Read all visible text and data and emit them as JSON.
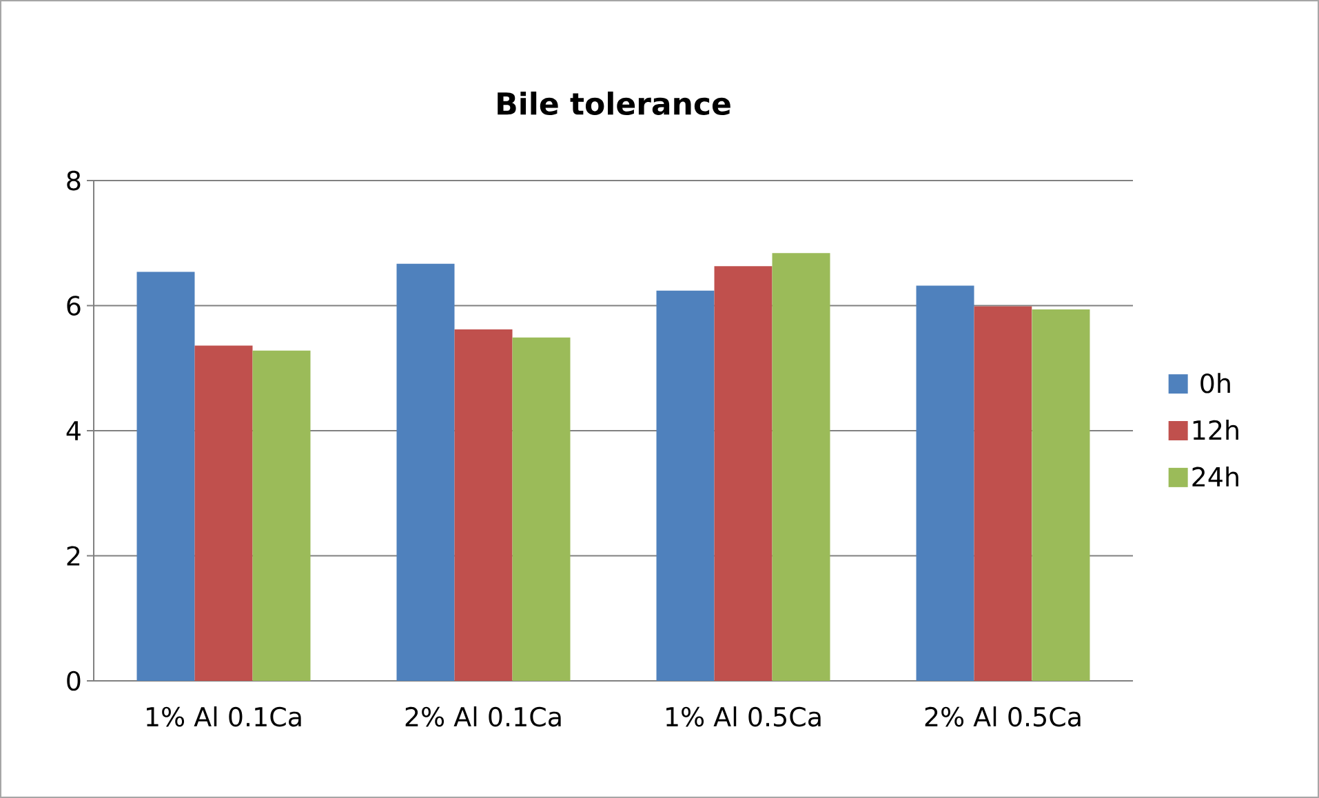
{
  "chart_data": {
    "type": "bar",
    "title": "Bile tolerance",
    "categories": [
      "1% Al  0.1Ca",
      "2% Al  0.1Ca",
      "1% Al  0.5Ca",
      "2% Al  0.5Ca"
    ],
    "series": [
      {
        "name": "0h",
        "color": "#4f81bd",
        "values": [
          6.54,
          6.67,
          6.24,
          6.32
        ]
      },
      {
        "name": "12h",
        "color": "#c0504d",
        "values": [
          5.36,
          5.62,
          6.63,
          5.99
        ]
      },
      {
        "name": "24h",
        "color": "#9bbb59",
        "values": [
          5.28,
          5.49,
          6.84,
          5.94
        ]
      }
    ],
    "ylim": [
      0,
      8
    ],
    "yticks": [
      0,
      2,
      4,
      6,
      8
    ],
    "grid": "y",
    "legend": "right"
  }
}
